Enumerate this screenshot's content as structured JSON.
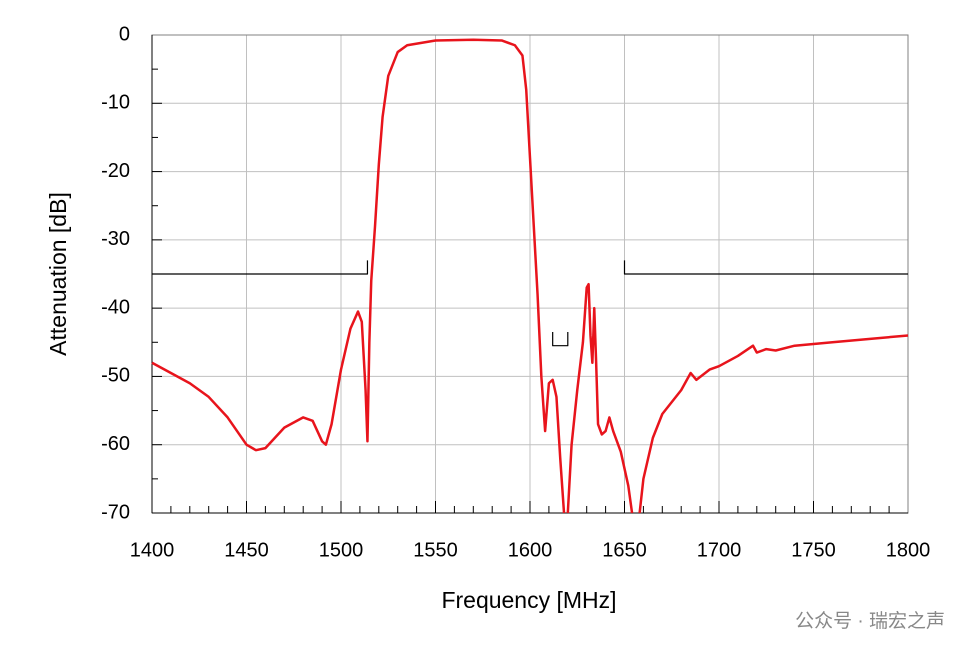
{
  "chart_data": {
    "type": "line",
    "xlabel": "Frequency [MHz]",
    "ylabel": "Attenuation [dB]",
    "xlim": [
      1400,
      1800
    ],
    "ylim": [
      -70,
      0
    ],
    "xticks": [
      1400,
      1450,
      1500,
      1550,
      1600,
      1650,
      1700,
      1750,
      1800
    ],
    "yticks": [
      0,
      -10,
      -20,
      -30,
      -40,
      -50,
      -60,
      -70
    ],
    "xminorticks": [
      1410,
      1420,
      1430,
      1440,
      1460,
      1470,
      1480,
      1490,
      1510,
      1520,
      1530,
      1540,
      1560,
      1570,
      1580,
      1590,
      1610,
      1620,
      1630,
      1640,
      1660,
      1670,
      1680,
      1690,
      1710,
      1720,
      1730,
      1740,
      1760,
      1770,
      1780,
      1790
    ],
    "yminorticks": [
      -5,
      -15,
      -25,
      -35,
      -45,
      -55,
      -65
    ],
    "grid": true,
    "series": [
      {
        "color": "#e8141c",
        "x": [
          1400,
          1410,
          1420,
          1430,
          1440,
          1450,
          1455,
          1460,
          1470,
          1480,
          1485,
          1490,
          1492,
          1495,
          1500,
          1505,
          1509,
          1511,
          1513,
          1514,
          1515,
          1516,
          1518,
          1520,
          1522,
          1525,
          1530,
          1535,
          1550,
          1570,
          1585,
          1592,
          1596,
          1598,
          1600,
          1602,
          1604,
          1606,
          1608,
          1610,
          1612,
          1614,
          1616,
          1618,
          1619,
          1620,
          1622,
          1625,
          1628,
          1630,
          1631,
          1632,
          1633,
          1634,
          1635,
          1636,
          1638,
          1640,
          1642,
          1644,
          1648,
          1652,
          1654,
          1656,
          1658,
          1660,
          1665,
          1670,
          1680,
          1685,
          1688,
          1695,
          1700,
          1710,
          1718,
          1720,
          1725,
          1730,
          1740,
          1760,
          1780,
          1800
        ],
        "values": [
          -48,
          -49.5,
          -51,
          -53,
          -56,
          -60,
          -60.8,
          -60.5,
          -57.5,
          -56,
          -56.5,
          -59.5,
          -60,
          -57,
          -49,
          -43,
          -40.5,
          -42,
          -52,
          -59.5,
          -45,
          -36,
          -28,
          -19,
          -12,
          -6,
          -2.5,
          -1.5,
          -0.8,
          -0.7,
          -0.8,
          -1.5,
          -3,
          -8,
          -18,
          -28,
          -38,
          -50,
          -58,
          -51,
          -50.5,
          -53,
          -62,
          -70,
          null,
          -70,
          -60,
          -52,
          -45,
          -37,
          -36.5,
          -44,
          -48,
          -40,
          -48,
          -57,
          -58.5,
          -58,
          -56,
          -58,
          -61,
          -66,
          -70,
          null,
          -70,
          -65,
          -59,
          -55.5,
          -52,
          -49.5,
          -50.5,
          -49,
          -48.5,
          -47,
          -45.5,
          -46.5,
          -46,
          -46.2,
          -45.5,
          -45,
          -44.5,
          -44
        ]
      },
      {
        "color": "#000000",
        "x": [
          1400,
          1514,
          1514,
          null,
          1612,
          1612,
          1620,
          1620,
          null,
          1650,
          1650,
          1800
        ],
        "values": [
          -35,
          -35,
          -33,
          null,
          -43.5,
          -45.5,
          -45.5,
          -43.5,
          null,
          -33,
          -35,
          -35
        ]
      }
    ]
  },
  "watermark": "公众号 · 瑞宏之声"
}
